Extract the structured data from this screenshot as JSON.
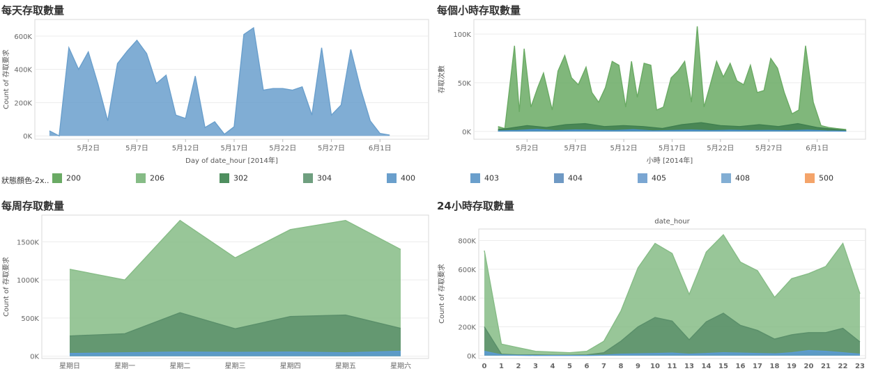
{
  "panels": {
    "daily_title": "每天存取數量",
    "hourly_title": "每個小時存取數量",
    "weekly_title": "每周存取數量",
    "hour24_title": "24小時存取數量"
  },
  "legend": {
    "title": "狀態顏色-2x..",
    "items": [
      {
        "label": "200",
        "color": "#6aaa64"
      },
      {
        "label": "206",
        "color": "#86bc86"
      },
      {
        "label": "302",
        "color": "#4f8f5f"
      },
      {
        "label": "304",
        "color": "#6f9f7f"
      },
      {
        "label": "400",
        "color": "#6a9fcc"
      },
      {
        "label": "403",
        "color": "#6a9fcc"
      },
      {
        "label": "404",
        "color": "#6f99c4"
      },
      {
        "label": "405",
        "color": "#7aa6d2"
      },
      {
        "label": "408",
        "color": "#82aed4"
      },
      {
        "label": "500",
        "color": "#f4a46a"
      }
    ]
  },
  "chart_data": [
    {
      "type": "area",
      "title": "每天存取數量",
      "xlabel": "Day of date_hour [2014年]",
      "ylabel": "Count of 存取要求",
      "ylim": [
        -20000,
        700000
      ],
      "yticks": [
        0,
        200000,
        400000,
        600000
      ],
      "ytick_labels": [
        "0K",
        "200K",
        "400K",
        "600K"
      ],
      "x_tick_labels": [
        "5月2日",
        "5月7日",
        "5月12日",
        "5月17日",
        "5月22日",
        "5月27日",
        "6月1日"
      ],
      "x_tick_days": [
        2,
        7,
        12,
        17,
        22,
        27,
        32
      ],
      "x_range_days": [
        -3.5,
        37
      ],
      "grid": true,
      "series": [
        {
          "color": "#6a9fcc",
          "x_days": [
            -2,
            -1,
            0,
            1,
            2,
            3,
            4,
            5,
            6,
            7,
            8,
            9,
            10,
            11,
            12,
            13,
            14,
            15,
            16,
            17,
            18,
            19,
            20,
            21,
            22,
            23,
            24,
            25,
            26,
            27,
            28,
            29,
            30,
            31,
            32,
            33
          ],
          "values": [
            30000,
            0,
            530000,
            400000,
            505000,
            310000,
            90000,
            435000,
            510000,
            575000,
            495000,
            315000,
            365000,
            125000,
            105000,
            360000,
            50000,
            85000,
            10000,
            55000,
            610000,
            650000,
            275000,
            285000,
            285000,
            275000,
            295000,
            125000,
            530000,
            125000,
            185000,
            520000,
            285000,
            90000,
            15000,
            5000
          ]
        }
      ]
    },
    {
      "type": "area",
      "title": "每個小時存取數量",
      "xlabel": "小時 [2014年]",
      "ylabel": "存取次數",
      "ylim": [
        -8000,
        115000
      ],
      "yticks": [
        0,
        50000,
        100000
      ],
      "ytick_labels": [
        "0K",
        "50K",
        "100K"
      ],
      "x_tick_labels": [
        "5月2日",
        "5月7日",
        "5月12日",
        "5月17日",
        "5月22日",
        "5月27日",
        "6月1日"
      ],
      "x_tick_days": [
        2,
        7,
        12,
        17,
        22,
        27,
        32
      ],
      "x_range_days": [
        -3.5,
        37
      ],
      "grid": true,
      "series": [
        {
          "color": "#6aaa64",
          "x_days": [
            -1,
            -0.3,
            0.7,
            1.2,
            1.7,
            2.4,
            3.1,
            3.7,
            4.6,
            5.2,
            5.9,
            6.6,
            7.3,
            8.1,
            8.7,
            9.4,
            10.1,
            10.8,
            11.5,
            12.2,
            12.8,
            13.4,
            14.1,
            14.8,
            15.4,
            16.1,
            16.9,
            17.6,
            18.3,
            19.0,
            19.6,
            20.3,
            21.0,
            21.6,
            22.3,
            23.0,
            23.7,
            24.4,
            25.1,
            25.8,
            26.5,
            27.2,
            27.9,
            28.6,
            29.4,
            30.1,
            30.8,
            31.6,
            32.4,
            33.2,
            34.0,
            35.0
          ],
          "values": [
            5000,
            3000,
            88000,
            20000,
            85000,
            25000,
            45000,
            60000,
            22000,
            62000,
            78000,
            55000,
            48000,
            66000,
            40000,
            30000,
            45000,
            72000,
            68000,
            25000,
            72000,
            35000,
            70000,
            68000,
            22000,
            25000,
            55000,
            62000,
            72000,
            30000,
            108000,
            25000,
            50000,
            72000,
            56000,
            70000,
            52000,
            48000,
            68000,
            40000,
            42000,
            75000,
            65000,
            40000,
            18000,
            22000,
            88000,
            30000,
            6000,
            4000,
            3000,
            2000
          ]
        },
        {
          "color": "#3f7f4f",
          "x_days": [
            -1,
            0,
            2,
            4,
            6,
            8,
            10,
            12,
            14,
            16,
            18,
            20,
            22,
            24,
            26,
            28,
            30,
            32,
            34,
            35
          ],
          "values": [
            2000,
            3000,
            6000,
            4000,
            7000,
            8000,
            5000,
            6000,
            5000,
            3000,
            7000,
            9000,
            6000,
            5000,
            7000,
            5000,
            8000,
            4000,
            2000,
            1000
          ]
        },
        {
          "color": "#4a8fd0",
          "x_days": [
            -1,
            1,
            3,
            5,
            7,
            9,
            11,
            13,
            15,
            17,
            19,
            21,
            23,
            25,
            27,
            29,
            31,
            33,
            35
          ],
          "values": [
            500,
            1000,
            2000,
            800,
            1500,
            1200,
            900,
            1800,
            600,
            1000,
            1400,
            800,
            1200,
            900,
            1100,
            700,
            1300,
            500,
            300
          ]
        }
      ]
    },
    {
      "type": "area",
      "title": "每周存取數量",
      "xlabel": "",
      "ylabel": "Count of 存取要求",
      "ylim": [
        -30000,
        1850000
      ],
      "yticks": [
        0,
        500000,
        1000000,
        1500000
      ],
      "ytick_labels": [
        "0K",
        "500K",
        "1000K",
        "1500K"
      ],
      "categories": [
        "星期日",
        "星期一",
        "星期二",
        "星期三",
        "星期四",
        "星期五",
        "星期六"
      ],
      "grid": true,
      "series": [
        {
          "color": "#86bc86",
          "values": [
            1140000,
            1000000,
            1780000,
            1290000,
            1660000,
            1780000,
            1400000
          ]
        },
        {
          "color": "#5a8f6a",
          "values": [
            265000,
            295000,
            570000,
            360000,
            520000,
            540000,
            365000
          ]
        },
        {
          "color": "#5b9bd5",
          "values": [
            35000,
            45000,
            55000,
            50000,
            55000,
            45000,
            65000
          ]
        }
      ]
    },
    {
      "type": "area",
      "title": "24小時存取數量",
      "header_label": "date_hour",
      "xlabel": "",
      "ylabel": "Count of 存取要求",
      "ylim": [
        -20000,
        880000
      ],
      "yticks": [
        0,
        200000,
        400000,
        600000,
        800000
      ],
      "ytick_labels": [
        "0K",
        "200K",
        "400K",
        "600K",
        "800K"
      ],
      "categories": [
        "0",
        "1",
        "2",
        "3",
        "4",
        "5",
        "6",
        "7",
        "8",
        "9",
        "10",
        "11",
        "13",
        "14",
        "15",
        "16",
        "17",
        "18",
        "19",
        "20",
        "21",
        "22",
        "23"
      ],
      "grid": true,
      "series": [
        {
          "color": "#86bc86",
          "values": [
            730000,
            80000,
            55000,
            30000,
            25000,
            20000,
            30000,
            100000,
            310000,
            610000,
            780000,
            710000,
            425000,
            720000,
            840000,
            650000,
            590000,
            405000,
            535000,
            570000,
            620000,
            780000,
            430000
          ]
        },
        {
          "color": "#5a8f6a",
          "values": [
            200000,
            10000,
            5000,
            5000,
            3000,
            3000,
            5000,
            20000,
            100000,
            200000,
            265000,
            240000,
            110000,
            235000,
            295000,
            210000,
            175000,
            115000,
            145000,
            160000,
            160000,
            190000,
            95000
          ]
        },
        {
          "color": "#5b9bd5",
          "values": [
            30000,
            5000,
            2000,
            1000,
            1000,
            1000,
            1000,
            3000,
            10000,
            12000,
            15000,
            18000,
            10000,
            15000,
            20000,
            18000,
            15000,
            12000,
            20000,
            35000,
            30000,
            20000,
            10000
          ]
        }
      ]
    }
  ]
}
